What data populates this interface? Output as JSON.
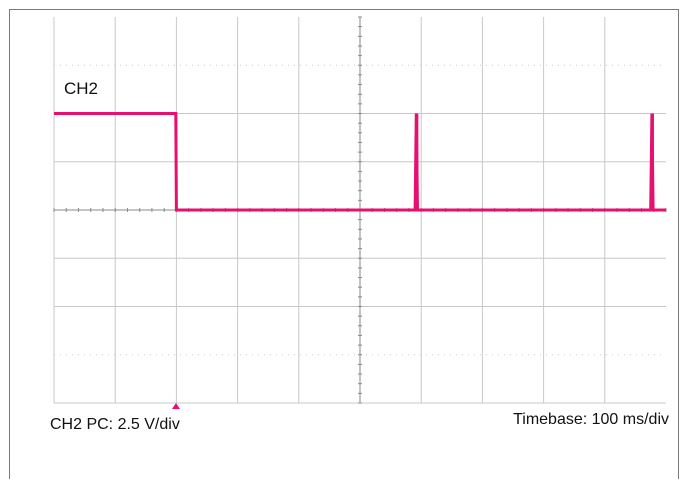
{
  "colors": {
    "trace": "#e8106e",
    "grid": "#c8c8c8",
    "axis": "#8a8a8a",
    "background": "#ffffff"
  },
  "labels": {
    "channel": "CH2",
    "channel_scale": "CH2 PC: 2.5 V/div",
    "timebase": "Timebase: 100 ms/div"
  },
  "chart_data": {
    "type": "line",
    "title": "",
    "xlabel": "",
    "ylabel": "",
    "grid": true,
    "x_divisions": 10,
    "y_divisions": 8,
    "x_unit_per_div": "100 ms",
    "y_unit_per_div": "2.5 V",
    "xlim": [
      0,
      1000
    ],
    "ylim": [
      -10,
      10
    ],
    "series": [
      {
        "name": "CH2",
        "x": [
          0,
          199,
          200,
          590,
          592,
          594,
          975,
          977,
          979,
          1000
        ],
        "y": [
          5.0,
          5.0,
          0.0,
          0.0,
          5.0,
          0.0,
          0.0,
          5.0,
          0.0,
          0.0
        ]
      }
    ],
    "trigger_x": 200
  }
}
